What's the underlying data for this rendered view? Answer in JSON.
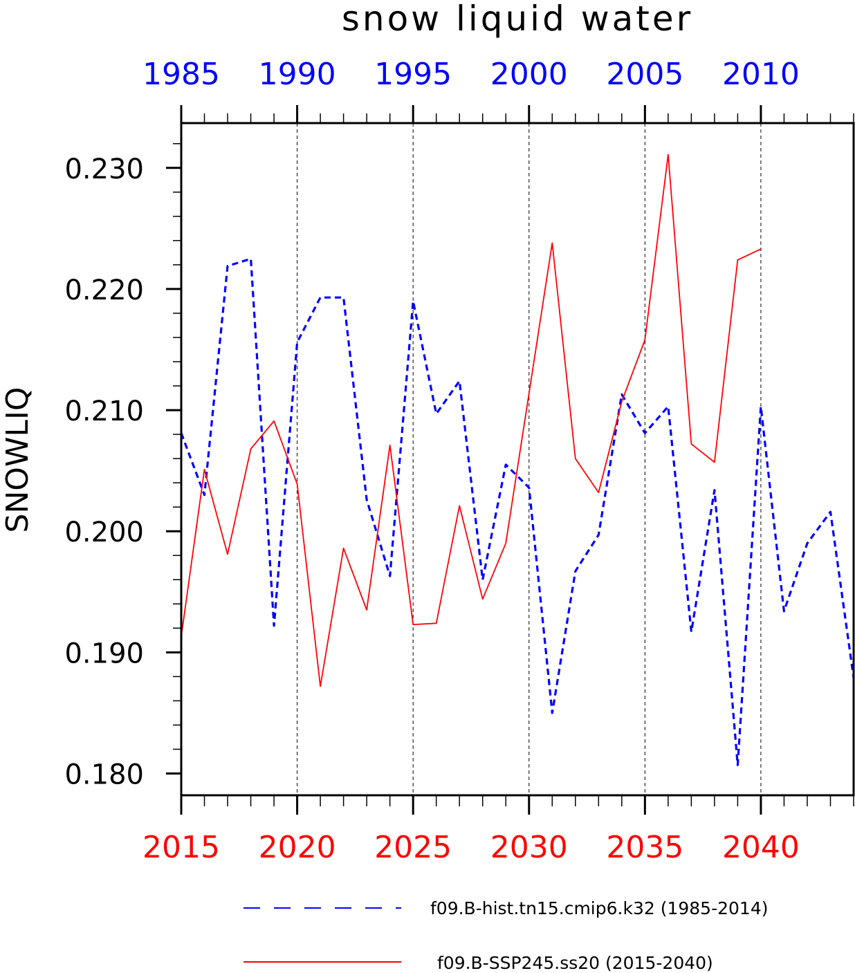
{
  "chart_data": {
    "type": "line",
    "title": "snow liquid water",
    "ylabel": "SNOWLIQ",
    "ylim": [
      0.1782,
      0.2337
    ],
    "grid": "vertical dashed",
    "yticks": [
      "0.180",
      "0.190",
      "0.200",
      "0.210",
      "0.220",
      "0.230"
    ],
    "ytick_values": [
      0.18,
      0.19,
      0.2,
      0.21,
      0.22,
      0.23
    ],
    "x_bottom": {
      "range": [
        2015,
        2044
      ],
      "ticks": [
        "2015",
        "2020",
        "2025",
        "2030",
        "2035",
        "2040"
      ],
      "tick_values": [
        2015,
        2020,
        2025,
        2030,
        2035,
        2040
      ],
      "color": "#ff0000"
    },
    "x_top": {
      "range": [
        1985,
        2014
      ],
      "ticks": [
        "1985",
        "1990",
        "1995",
        "2000",
        "2005",
        "2010"
      ],
      "tick_values": [
        1985,
        1990,
        1995,
        2000,
        2005,
        2010
      ],
      "color": "#0000ff"
    },
    "legend_position": "bottom",
    "series": [
      {
        "name": "f09.B-hist.tn15.cmip6.k32 (1985-2014)",
        "axis": "top",
        "color": "#0000ff",
        "dash": "dashed",
        "x": [
          1985,
          1986,
          1987,
          1988,
          1989,
          1990,
          1991,
          1992,
          1993,
          1994,
          1995,
          1996,
          1997,
          1998,
          1999,
          2000,
          2001,
          2002,
          2003,
          2004,
          2005,
          2006,
          2007,
          2008,
          2009,
          2010,
          2011,
          2012,
          2013,
          2014
        ],
        "y": [
          0.2081,
          0.203,
          0.2219,
          0.2225,
          0.1922,
          0.2156,
          0.2193,
          0.2193,
          0.2026,
          0.1963,
          0.219,
          0.2097,
          0.2124,
          0.196,
          0.2055,
          0.2036,
          0.185,
          0.1967,
          0.1997,
          0.2113,
          0.2081,
          0.2103,
          0.1917,
          0.2034,
          0.1807,
          0.2103,
          0.1934,
          0.199,
          0.2016,
          0.1879
        ]
      },
      {
        "name": "f09.B-SSP245.ss20 (2015-2040)",
        "axis": "bottom",
        "color": "#ff0000",
        "dash": "solid",
        "x": [
          2015,
          2016,
          2017,
          2018,
          2019,
          2020,
          2021,
          2022,
          2023,
          2024,
          2025,
          2026,
          2027,
          2028,
          2029,
          2030,
          2031,
          2032,
          2033,
          2034,
          2035,
          2036,
          2037,
          2038,
          2039,
          2040
        ],
        "y": [
          0.1913,
          0.2051,
          0.1981,
          0.2068,
          0.2091,
          0.2039,
          0.1872,
          0.1986,
          0.1935,
          0.2071,
          0.1923,
          0.1924,
          0.2021,
          0.1944,
          0.199,
          0.2114,
          0.2238,
          0.206,
          0.2032,
          0.2107,
          0.2158,
          0.2311,
          0.2072,
          0.2057,
          0.2224,
          0.2233
        ]
      }
    ]
  }
}
